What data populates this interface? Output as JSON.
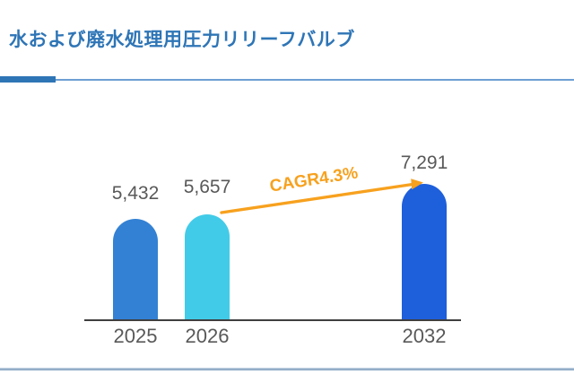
{
  "page": {
    "header_title": "水および廃水処理用圧力リリーフバルブ"
  },
  "chart_data": {
    "type": "bar",
    "title": "水および廃水処理用圧力リリーフバルブ",
    "categories": [
      "2025",
      "2026",
      "2032"
    ],
    "values": [
      5432,
      5657,
      7291
    ],
    "value_labels": [
      "5,432",
      "5,657",
      "7,291"
    ],
    "annotation": "CAGR4.3%",
    "xlabel": "",
    "ylabel": "",
    "ylim": [
      0,
      7291
    ],
    "grid": false,
    "legend": "none",
    "bar_colors": [
      "#3381D4",
      "#42CBE8",
      "#1E5FDC"
    ],
    "annotation_color": "#F7A11E",
    "axis_color": "#3F3F3F",
    "label_color": "#595959"
  },
  "theme": {
    "title_color": "#2E75B6",
    "accent_rule_color": "#2E75B6",
    "thin_rule_color": "#6E9FD4",
    "footer_rule_color": "#7D9CBC",
    "background": "#FFFFFF"
  }
}
